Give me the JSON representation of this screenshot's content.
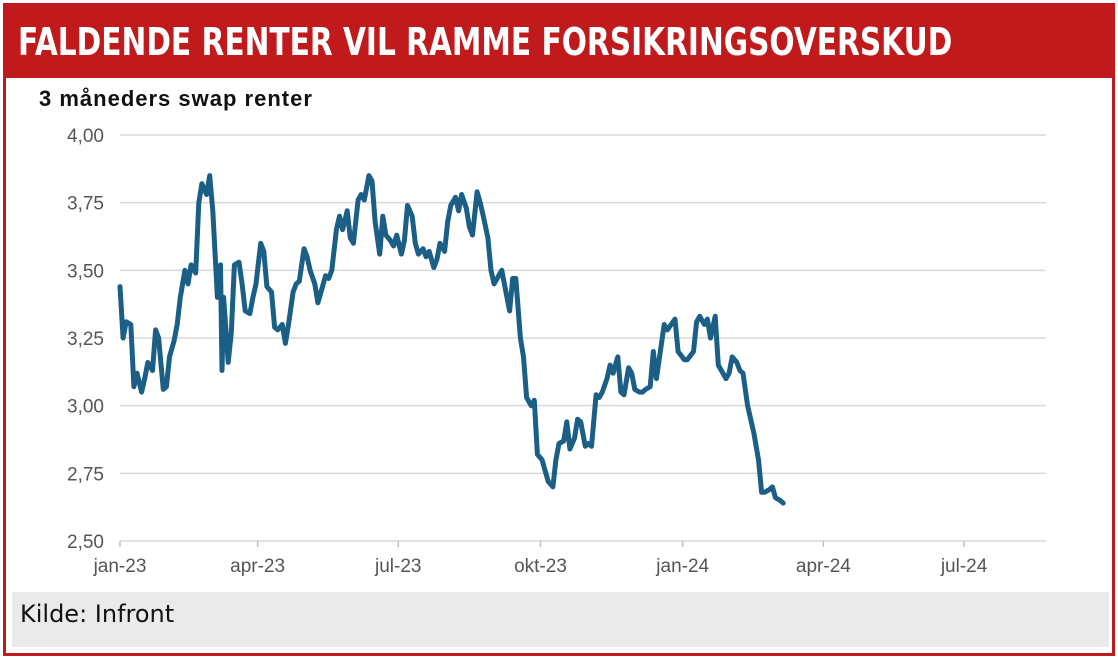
{
  "header": {
    "title": "FALDENDE RENTER VIL RAMME FORSIKRINGSOVERSKUD"
  },
  "footer": {
    "source": "Kilde: Infront"
  },
  "colors": {
    "brand_red": "#c01a1c",
    "series_line": "#1b5e86",
    "grid": "#d9d9d9",
    "footer_bg": "#eaeaea"
  },
  "chart_data": {
    "type": "line",
    "title": "3 måneders swap renter",
    "xlabel": "",
    "ylabel": "",
    "ylim": [
      2.5,
      4.0
    ],
    "xlim": [
      "2023-01-02",
      "2024-08-23"
    ],
    "grid": true,
    "legend": "none",
    "y_ticks": [
      {
        "value": 4.0,
        "label": "4,00"
      },
      {
        "value": 3.75,
        "label": "3,75"
      },
      {
        "value": 3.5,
        "label": "3,50"
      },
      {
        "value": 3.25,
        "label": "3,25"
      },
      {
        "value": 3.0,
        "label": "3,00"
      },
      {
        "value": 2.75,
        "label": "2,75"
      },
      {
        "value": 2.5,
        "label": "2,50"
      }
    ],
    "x_ticks": [
      {
        "date": "2023-01-02",
        "label": "jan-23"
      },
      {
        "date": "2023-04-01",
        "label": "apr-23"
      },
      {
        "date": "2023-07-01",
        "label": "jul-23"
      },
      {
        "date": "2023-10-01",
        "label": "okt-23"
      },
      {
        "date": "2024-01-01",
        "label": "jan-24"
      },
      {
        "date": "2024-04-01",
        "label": "apr-24"
      },
      {
        "date": "2024-07-01",
        "label": "jul-24"
      }
    ],
    "series": [
      {
        "color": "#1b5e86",
        "points": [
          [
            "2023-01-02",
            3.44
          ],
          [
            "2023-01-04",
            3.25
          ],
          [
            "2023-01-06",
            3.31
          ],
          [
            "2023-01-09",
            3.3
          ],
          [
            "2023-01-11",
            3.07
          ],
          [
            "2023-01-13",
            3.12
          ],
          [
            "2023-01-16",
            3.05
          ],
          [
            "2023-01-18",
            3.1
          ],
          [
            "2023-01-20",
            3.16
          ],
          [
            "2023-01-23",
            3.13
          ],
          [
            "2023-01-25",
            3.28
          ],
          [
            "2023-01-27",
            3.25
          ],
          [
            "2023-01-30",
            3.06
          ],
          [
            "2023-02-01",
            3.07
          ],
          [
            "2023-02-03",
            3.18
          ],
          [
            "2023-02-06",
            3.24
          ],
          [
            "2023-02-08",
            3.3
          ],
          [
            "2023-02-10",
            3.4
          ],
          [
            "2023-02-13",
            3.5
          ],
          [
            "2023-02-15",
            3.45
          ],
          [
            "2023-02-17",
            3.52
          ],
          [
            "2023-02-20",
            3.49
          ],
          [
            "2023-02-22",
            3.75
          ],
          [
            "2023-02-24",
            3.82
          ],
          [
            "2023-02-27",
            3.78
          ],
          [
            "2023-03-01",
            3.85
          ],
          [
            "2023-03-03",
            3.72
          ],
          [
            "2023-03-06",
            3.4
          ],
          [
            "2023-03-08",
            3.52
          ],
          [
            "2023-03-09",
            3.13
          ],
          [
            "2023-03-10",
            3.4
          ],
          [
            "2023-03-13",
            3.16
          ],
          [
            "2023-03-15",
            3.27
          ],
          [
            "2023-03-17",
            3.52
          ],
          [
            "2023-03-20",
            3.53
          ],
          [
            "2023-03-22",
            3.45
          ],
          [
            "2023-03-24",
            3.35
          ],
          [
            "2023-03-27",
            3.34
          ],
          [
            "2023-03-29",
            3.4
          ],
          [
            "2023-03-31",
            3.45
          ],
          [
            "2023-04-03",
            3.6
          ],
          [
            "2023-04-05",
            3.57
          ],
          [
            "2023-04-07",
            3.44
          ],
          [
            "2023-04-10",
            3.42
          ],
          [
            "2023-04-12",
            3.29
          ],
          [
            "2023-04-14",
            3.28
          ],
          [
            "2023-04-17",
            3.3
          ],
          [
            "2023-04-19",
            3.23
          ],
          [
            "2023-04-21",
            3.3
          ],
          [
            "2023-04-24",
            3.42
          ],
          [
            "2023-04-26",
            3.45
          ],
          [
            "2023-04-28",
            3.46
          ],
          [
            "2023-05-01",
            3.58
          ],
          [
            "2023-05-03",
            3.55
          ],
          [
            "2023-05-05",
            3.5
          ],
          [
            "2023-05-08",
            3.45
          ],
          [
            "2023-05-10",
            3.38
          ],
          [
            "2023-05-12",
            3.42
          ],
          [
            "2023-05-15",
            3.48
          ],
          [
            "2023-05-17",
            3.47
          ],
          [
            "2023-05-19",
            3.5
          ],
          [
            "2023-05-22",
            3.65
          ],
          [
            "2023-05-24",
            3.7
          ],
          [
            "2023-05-26",
            3.65
          ],
          [
            "2023-05-29",
            3.72
          ],
          [
            "2023-05-31",
            3.62
          ],
          [
            "2023-06-02",
            3.6
          ],
          [
            "2023-06-05",
            3.76
          ],
          [
            "2023-06-07",
            3.78
          ],
          [
            "2023-06-09",
            3.76
          ],
          [
            "2023-06-12",
            3.85
          ],
          [
            "2023-06-14",
            3.83
          ],
          [
            "2023-06-16",
            3.68
          ],
          [
            "2023-06-19",
            3.56
          ],
          [
            "2023-06-21",
            3.7
          ],
          [
            "2023-06-23",
            3.63
          ],
          [
            "2023-06-26",
            3.61
          ],
          [
            "2023-06-28",
            3.59
          ],
          [
            "2023-06-30",
            3.63
          ],
          [
            "2023-07-03",
            3.56
          ],
          [
            "2023-07-05",
            3.61
          ],
          [
            "2023-07-07",
            3.74
          ],
          [
            "2023-07-10",
            3.7
          ],
          [
            "2023-07-12",
            3.6
          ],
          [
            "2023-07-14",
            3.56
          ],
          [
            "2023-07-17",
            3.58
          ],
          [
            "2023-07-19",
            3.55
          ],
          [
            "2023-07-21",
            3.57
          ],
          [
            "2023-07-24",
            3.51
          ],
          [
            "2023-07-26",
            3.54
          ],
          [
            "2023-07-28",
            3.6
          ],
          [
            "2023-07-31",
            3.57
          ],
          [
            "2023-08-02",
            3.68
          ],
          [
            "2023-08-04",
            3.74
          ],
          [
            "2023-08-07",
            3.77
          ],
          [
            "2023-08-09",
            3.72
          ],
          [
            "2023-08-11",
            3.78
          ],
          [
            "2023-08-14",
            3.73
          ],
          [
            "2023-08-16",
            3.66
          ],
          [
            "2023-08-18",
            3.63
          ],
          [
            "2023-08-21",
            3.79
          ],
          [
            "2023-08-23",
            3.75
          ],
          [
            "2023-08-25",
            3.7
          ],
          [
            "2023-08-28",
            3.62
          ],
          [
            "2023-08-30",
            3.5
          ],
          [
            "2023-09-01",
            3.45
          ],
          [
            "2023-09-04",
            3.48
          ],
          [
            "2023-09-06",
            3.5
          ],
          [
            "2023-09-08",
            3.44
          ],
          [
            "2023-09-11",
            3.35
          ],
          [
            "2023-09-13",
            3.47
          ],
          [
            "2023-09-15",
            3.47
          ],
          [
            "2023-09-18",
            3.25
          ],
          [
            "2023-09-20",
            3.18
          ],
          [
            "2023-09-22",
            3.03
          ],
          [
            "2023-09-25",
            3.0
          ],
          [
            "2023-09-27",
            3.02
          ],
          [
            "2023-09-29",
            2.82
          ],
          [
            "2023-10-02",
            2.8
          ],
          [
            "2023-10-04",
            2.76
          ],
          [
            "2023-10-06",
            2.72
          ],
          [
            "2023-10-09",
            2.7
          ],
          [
            "2023-10-11",
            2.8
          ],
          [
            "2023-10-13",
            2.86
          ],
          [
            "2023-10-16",
            2.87
          ],
          [
            "2023-10-18",
            2.94
          ],
          [
            "2023-10-20",
            2.84
          ],
          [
            "2023-10-23",
            2.88
          ],
          [
            "2023-10-25",
            2.95
          ],
          [
            "2023-10-27",
            2.94
          ],
          [
            "2023-10-30",
            2.85
          ],
          [
            "2023-11-01",
            2.86
          ],
          [
            "2023-11-03",
            2.85
          ],
          [
            "2023-11-06",
            3.04
          ],
          [
            "2023-11-08",
            3.03
          ],
          [
            "2023-11-10",
            3.05
          ],
          [
            "2023-11-13",
            3.1
          ],
          [
            "2023-11-15",
            3.15
          ],
          [
            "2023-11-17",
            3.12
          ],
          [
            "2023-11-20",
            3.18
          ],
          [
            "2023-11-22",
            3.05
          ],
          [
            "2023-11-24",
            3.04
          ],
          [
            "2023-11-27",
            3.14
          ],
          [
            "2023-11-29",
            3.12
          ],
          [
            "2023-12-01",
            3.06
          ],
          [
            "2023-12-04",
            3.05
          ],
          [
            "2023-12-06",
            3.05
          ],
          [
            "2023-12-08",
            3.06
          ],
          [
            "2023-12-11",
            3.07
          ],
          [
            "2023-12-13",
            3.2
          ],
          [
            "2023-12-15",
            3.1
          ],
          [
            "2023-12-18",
            3.22
          ],
          [
            "2023-12-20",
            3.3
          ],
          [
            "2023-12-22",
            3.28
          ],
          [
            "2023-12-27",
            3.32
          ],
          [
            "2023-12-29",
            3.2
          ],
          [
            "2024-01-02",
            3.17
          ],
          [
            "2024-01-04",
            3.17
          ],
          [
            "2024-01-08",
            3.2
          ],
          [
            "2024-01-10",
            3.31
          ],
          [
            "2024-01-12",
            3.33
          ],
          [
            "2024-01-15",
            3.3
          ],
          [
            "2024-01-17",
            3.32
          ],
          [
            "2024-01-19",
            3.25
          ],
          [
            "2024-01-22",
            3.33
          ],
          [
            "2024-01-24",
            3.15
          ],
          [
            "2024-01-26",
            3.13
          ],
          [
            "2024-01-29",
            3.1
          ],
          [
            "2024-01-31",
            3.12
          ],
          [
            "2024-02-02",
            3.18
          ],
          [
            "2024-02-05",
            3.16
          ],
          [
            "2024-02-07",
            3.13
          ],
          [
            "2024-02-09",
            3.12
          ],
          [
            "2024-02-12",
            3.0
          ],
          [
            "2024-02-14",
            2.95
          ],
          [
            "2024-02-16",
            2.9
          ],
          [
            "2024-02-19",
            2.8
          ],
          [
            "2024-02-21",
            2.68
          ],
          [
            "2024-02-23",
            2.68
          ],
          [
            "2024-02-26",
            2.69
          ],
          [
            "2024-02-28",
            2.7
          ],
          [
            "2024-03-01",
            2.66
          ],
          [
            "2024-03-04",
            2.65
          ],
          [
            "2024-03-06",
            2.64
          ]
        ]
      }
    ]
  }
}
